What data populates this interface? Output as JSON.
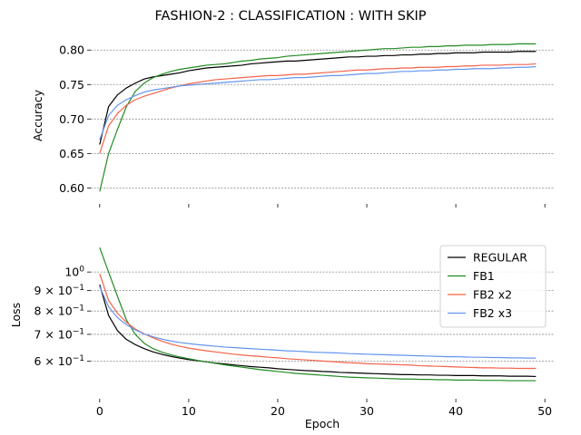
{
  "figure": {
    "title": "FASHION-2 : CLASSIFICATION : WITH SKIP"
  },
  "chart_data": [
    {
      "type": "line",
      "ylabel": "Accuracy",
      "xlabel": "",
      "xlim": [
        -1,
        51
      ],
      "ylim": [
        0.59,
        0.82
      ],
      "yticks": [
        0.6,
        0.65,
        0.7,
        0.75,
        0.8
      ],
      "ytick_labels": [
        "0.60",
        "0.65",
        "0.70",
        "0.75",
        "0.80"
      ],
      "xticks": [
        0,
        10,
        20,
        30,
        40,
        50
      ],
      "grid": "horizontal dashed",
      "series": [
        {
          "name": "REGULAR",
          "color": "#000000",
          "values": [
            0.663,
            0.718,
            0.735,
            0.745,
            0.752,
            0.758,
            0.761,
            0.763,
            0.765,
            0.767,
            0.77,
            0.772,
            0.774,
            0.775,
            0.776,
            0.777,
            0.778,
            0.78,
            0.781,
            0.782,
            0.783,
            0.784,
            0.784,
            0.785,
            0.786,
            0.787,
            0.788,
            0.789,
            0.79,
            0.79,
            0.791,
            0.791,
            0.792,
            0.792,
            0.793,
            0.793,
            0.794,
            0.794,
            0.795,
            0.795,
            0.796,
            0.796,
            0.796,
            0.797,
            0.797,
            0.797,
            0.797,
            0.798,
            0.798,
            0.798
          ]
        },
        {
          "name": "FB1",
          "color": "#228b22",
          "values": [
            0.595,
            0.65,
            0.685,
            0.718,
            0.74,
            0.752,
            0.76,
            0.765,
            0.769,
            0.772,
            0.774,
            0.776,
            0.778,
            0.779,
            0.78,
            0.782,
            0.784,
            0.785,
            0.787,
            0.788,
            0.789,
            0.791,
            0.792,
            0.793,
            0.794,
            0.795,
            0.796,
            0.797,
            0.798,
            0.799,
            0.8,
            0.801,
            0.802,
            0.802,
            0.803,
            0.804,
            0.804,
            0.805,
            0.805,
            0.806,
            0.806,
            0.807,
            0.807,
            0.807,
            0.808,
            0.808,
            0.808,
            0.809,
            0.809,
            0.809
          ]
        },
        {
          "name": "FB2 x2",
          "color": "#f4624a",
          "values": [
            0.65,
            0.69,
            0.708,
            0.72,
            0.728,
            0.733,
            0.737,
            0.741,
            0.745,
            0.748,
            0.751,
            0.753,
            0.755,
            0.757,
            0.758,
            0.759,
            0.76,
            0.761,
            0.762,
            0.763,
            0.763,
            0.764,
            0.765,
            0.765,
            0.766,
            0.767,
            0.768,
            0.769,
            0.77,
            0.771,
            0.771,
            0.772,
            0.773,
            0.773,
            0.774,
            0.774,
            0.775,
            0.775,
            0.775,
            0.776,
            0.776,
            0.777,
            0.777,
            0.778,
            0.778,
            0.778,
            0.779,
            0.779,
            0.779,
            0.78
          ]
        },
        {
          "name": "FB2 x3",
          "color": "#6495ed",
          "values": [
            0.67,
            0.705,
            0.72,
            0.728,
            0.734,
            0.739,
            0.742,
            0.744,
            0.746,
            0.748,
            0.749,
            0.75,
            0.751,
            0.752,
            0.753,
            0.754,
            0.755,
            0.756,
            0.757,
            0.757,
            0.758,
            0.759,
            0.76,
            0.76,
            0.761,
            0.762,
            0.763,
            0.763,
            0.764,
            0.765,
            0.766,
            0.766,
            0.767,
            0.768,
            0.769,
            0.769,
            0.77,
            0.77,
            0.771,
            0.771,
            0.772,
            0.772,
            0.773,
            0.773,
            0.773,
            0.774,
            0.774,
            0.775,
            0.775,
            0.776
          ]
        }
      ]
    },
    {
      "type": "line",
      "ylabel": "Loss",
      "xlabel": "Epoch",
      "xlim": [
        -1,
        51
      ],
      "ylim": [
        0.51,
        1.2
      ],
      "yscale": "log",
      "yticks": [
        0.6,
        0.7,
        0.8,
        0.9,
        1.0
      ],
      "ytick_labels": [
        {
          "base": "6",
          "sup": "−1",
          "prefix": "6 × 10"
        },
        {
          "base": "7",
          "sup": "−1",
          "prefix": "7 × 10"
        },
        {
          "base": "8",
          "sup": "−1",
          "prefix": "8 × 10"
        },
        {
          "base": "9",
          "sup": "−1",
          "prefix": "9 × 10"
        },
        {
          "base": "1",
          "sup": "0",
          "prefix": "10"
        }
      ],
      "xticks": [
        0,
        10,
        20,
        30,
        40,
        50
      ],
      "xtick_labels": [
        "0",
        "10",
        "20",
        "30",
        "40",
        "50"
      ],
      "grid": "horizontal dashed",
      "legend": "top-right",
      "series": [
        {
          "name": "REGULAR",
          "color": "#000000",
          "values": [
            0.93,
            0.78,
            0.715,
            0.68,
            0.66,
            0.645,
            0.633,
            0.624,
            0.617,
            0.611,
            0.606,
            0.602,
            0.598,
            0.594,
            0.591,
            0.588,
            0.585,
            0.582,
            0.58,
            0.578,
            0.575,
            0.573,
            0.571,
            0.569,
            0.568,
            0.566,
            0.565,
            0.563,
            0.562,
            0.561,
            0.56,
            0.559,
            0.558,
            0.557,
            0.556,
            0.556,
            0.555,
            0.555,
            0.554,
            0.554,
            0.553,
            0.553,
            0.553,
            0.552,
            0.552,
            0.552,
            0.551,
            0.551,
            0.551,
            0.55
          ]
        },
        {
          "name": "FB1",
          "color": "#228b22",
          "values": [
            1.15,
            1.0,
            0.87,
            0.76,
            0.7,
            0.665,
            0.645,
            0.632,
            0.623,
            0.615,
            0.609,
            0.603,
            0.598,
            0.593,
            0.588,
            0.584,
            0.58,
            0.576,
            0.572,
            0.569,
            0.566,
            0.563,
            0.56,
            0.558,
            0.556,
            0.554,
            0.552,
            0.55,
            0.548,
            0.547,
            0.546,
            0.545,
            0.544,
            0.543,
            0.542,
            0.542,
            0.541,
            0.541,
            0.54,
            0.54,
            0.539,
            0.539,
            0.539,
            0.538,
            0.538,
            0.538,
            0.537,
            0.537,
            0.537,
            0.537
          ]
        },
        {
          "name": "FB2 x2",
          "color": "#f4624a",
          "values": [
            0.99,
            0.85,
            0.79,
            0.75,
            0.722,
            0.702,
            0.686,
            0.673,
            0.662,
            0.654,
            0.647,
            0.642,
            0.637,
            0.633,
            0.629,
            0.625,
            0.622,
            0.619,
            0.617,
            0.614,
            0.612,
            0.609,
            0.607,
            0.605,
            0.603,
            0.601,
            0.599,
            0.597,
            0.595,
            0.594,
            0.592,
            0.591,
            0.59,
            0.589,
            0.588,
            0.587,
            0.585,
            0.584,
            0.583,
            0.582,
            0.581,
            0.58,
            0.579,
            0.578,
            0.578,
            0.577,
            0.577,
            0.576,
            0.576,
            0.576
          ]
        },
        {
          "name": "FB2 x3",
          "color": "#6495ed",
          "values": [
            0.92,
            0.82,
            0.77,
            0.74,
            0.718,
            0.702,
            0.69,
            0.681,
            0.674,
            0.668,
            0.664,
            0.66,
            0.657,
            0.654,
            0.651,
            0.649,
            0.647,
            0.645,
            0.643,
            0.641,
            0.639,
            0.637,
            0.636,
            0.634,
            0.632,
            0.631,
            0.63,
            0.629,
            0.627,
            0.626,
            0.625,
            0.624,
            0.623,
            0.622,
            0.621,
            0.62,
            0.619,
            0.618,
            0.617,
            0.616,
            0.616,
            0.615,
            0.614,
            0.614,
            0.613,
            0.613,
            0.612,
            0.612,
            0.611,
            0.611
          ]
        }
      ]
    }
  ]
}
